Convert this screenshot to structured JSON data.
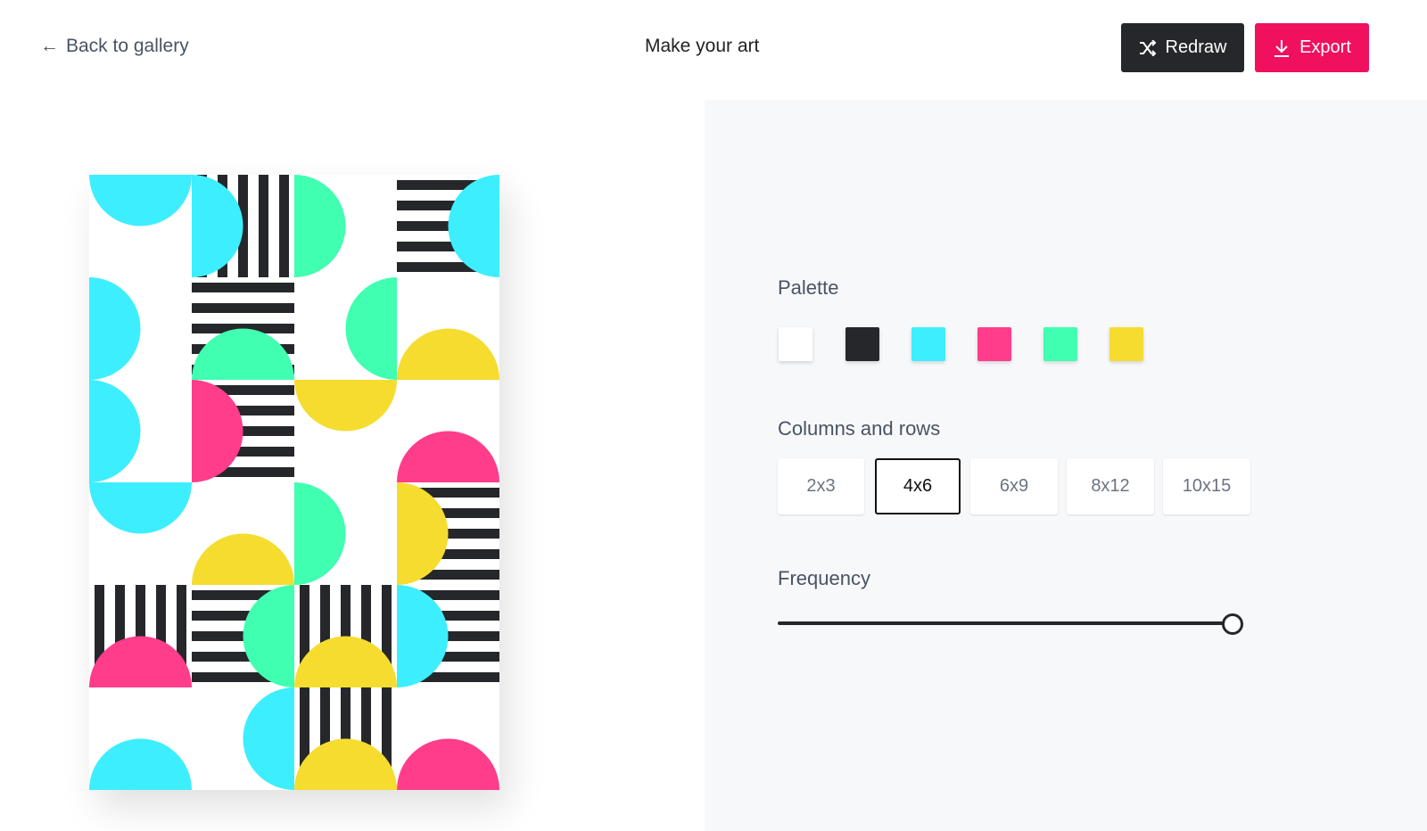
{
  "header": {
    "back_label": "Back to gallery",
    "title": "Make your art",
    "redraw_label": "Redraw",
    "export_label": "Export"
  },
  "colors": {
    "dark": "#25272b",
    "accent": "#f0105d",
    "panel": "#f7f8fa"
  },
  "palette": {
    "label": "Palette",
    "swatches": [
      "#ffffff",
      "#25272b",
      "#3deeff",
      "#ff3d8b",
      "#40ffb0",
      "#f5dc2f"
    ]
  },
  "grid": {
    "label": "Columns and rows",
    "options": [
      "2x3",
      "4x6",
      "6x9",
      "8x12",
      "10x15"
    ],
    "selected": "4x6"
  },
  "frequency": {
    "label": "Frequency",
    "value_percent": 100
  },
  "art": {
    "columns": 4,
    "rows": 6,
    "cells": [
      [
        {
          "c": "#3deeff",
          "f": "top"
        },
        {
          "s": "v",
          "c": "#3deeff",
          "f": "left"
        },
        {
          "c": "#40ffb0",
          "f": "left"
        },
        {
          "s": "h",
          "c": "#3deeff",
          "f": "right"
        }
      ],
      [
        {
          "c": "#3deeff",
          "f": "left"
        },
        {
          "s": "h",
          "c": "#40ffb0",
          "f": "bottom"
        },
        {
          "c": "#40ffb0",
          "f": "right"
        },
        {
          "c": "#f5dc2f",
          "f": "bottom"
        }
      ],
      [
        {
          "c": "#3deeff",
          "f": "left"
        },
        {
          "s": "h",
          "c": "#ff3d8b",
          "f": "left"
        },
        {
          "c": "#f5dc2f",
          "f": "top"
        },
        {
          "c": "#ff3d8b",
          "f": "bottom"
        }
      ],
      [
        {
          "c": "#3deeff",
          "f": "top"
        },
        {
          "c": "#f5dc2f",
          "f": "bottom"
        },
        {
          "c": "#40ffb0",
          "f": "left"
        },
        {
          "s": "h",
          "c": "#f5dc2f",
          "f": "left"
        }
      ],
      [
        {
          "s": "v",
          "c": "#ff3d8b",
          "f": "bottom"
        },
        {
          "s": "h",
          "c": "#40ffb0",
          "f": "right"
        },
        {
          "s": "v",
          "c": "#f5dc2f",
          "f": "bottom"
        },
        {
          "s": "h",
          "c": "#3deeff",
          "f": "left"
        }
      ],
      [
        {
          "c": "#3deeff",
          "f": "bottom"
        },
        {
          "c": "#3deeff",
          "f": "right"
        },
        {
          "s": "v",
          "c": "#f5dc2f",
          "f": "bottom"
        },
        {
          "c": "#ff3d8b",
          "f": "bottom"
        }
      ]
    ]
  }
}
